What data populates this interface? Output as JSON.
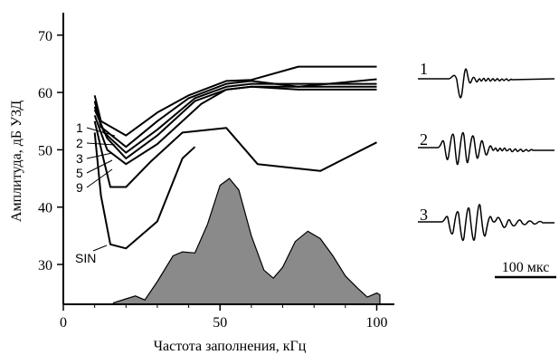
{
  "chart_data": {
    "type": "line",
    "title": "",
    "xlabel": "Частота заполнения, кГц",
    "ylabel": "Амплитуда, дБ УЗД",
    "xlim": [
      0,
      105
    ],
    "ylim": [
      23,
      74
    ],
    "xticks": [
      0,
      50,
      100
    ],
    "yticks": [
      30,
      40,
      50,
      60,
      70
    ],
    "grid": false,
    "series": [
      {
        "name": "1",
        "points": [
          [
            10,
            59.5
          ],
          [
            12,
            55
          ],
          [
            20,
            52.5
          ],
          [
            30,
            56.5
          ],
          [
            40,
            59.5
          ],
          [
            52,
            62
          ],
          [
            60,
            62.2
          ],
          [
            75,
            64.5
          ],
          [
            100,
            64.5
          ]
        ]
      },
      {
        "name": "2",
        "points": [
          [
            10,
            58.5
          ],
          [
            12,
            54
          ],
          [
            20,
            50.5
          ],
          [
            30,
            55
          ],
          [
            40,
            59
          ],
          [
            52,
            61.5
          ],
          [
            60,
            62
          ],
          [
            75,
            61
          ],
          [
            100,
            62.3
          ]
        ]
      },
      {
        "name": "3",
        "points": [
          [
            10,
            57.5
          ],
          [
            13,
            53
          ],
          [
            20,
            49.5
          ],
          [
            30,
            53.5
          ],
          [
            42,
            59
          ],
          [
            52,
            61
          ],
          [
            60,
            61.5
          ],
          [
            75,
            61.5
          ],
          [
            100,
            61.5
          ]
        ]
      },
      {
        "name": "5",
        "points": [
          [
            10,
            57
          ],
          [
            14,
            52
          ],
          [
            20,
            48.5
          ],
          [
            30,
            52.5
          ],
          [
            42,
            58.5
          ],
          [
            52,
            60.5
          ],
          [
            60,
            61
          ],
          [
            75,
            60.5
          ],
          [
            100,
            60.5
          ]
        ]
      },
      {
        "name": "9",
        "points": [
          [
            10,
            56
          ],
          [
            14,
            50
          ],
          [
            20,
            47.5
          ],
          [
            30,
            51
          ],
          [
            44,
            58
          ],
          [
            52,
            60.5
          ],
          [
            60,
            61
          ],
          [
            75,
            61
          ],
          [
            100,
            61
          ]
        ]
      },
      {
        "name": "",
        "points": [
          [
            10,
            55
          ],
          [
            13,
            48
          ],
          [
            15,
            43.5
          ],
          [
            20,
            43.5
          ],
          [
            28,
            48
          ],
          [
            38,
            53
          ],
          [
            52,
            53.8
          ],
          [
            62,
            47.5
          ],
          [
            82,
            46.3
          ],
          [
            100,
            51.3
          ]
        ]
      },
      {
        "name": "SIN",
        "points": [
          [
            10,
            53
          ],
          [
            12,
            42
          ],
          [
            15,
            33.5
          ],
          [
            20,
            32.8
          ],
          [
            30,
            37.5
          ],
          [
            38,
            48.5
          ],
          [
            42,
            50.5
          ]
        ]
      }
    ],
    "spectrum": {
      "type": "area",
      "points": [
        [
          16,
          23.3
        ],
        [
          20,
          24
        ],
        [
          23,
          24.5
        ],
        [
          26,
          23.8
        ],
        [
          30,
          27
        ],
        [
          35,
          31.5
        ],
        [
          38,
          32.2
        ],
        [
          42,
          32
        ],
        [
          46,
          37
        ],
        [
          50,
          43.8
        ],
        [
          53,
          45
        ],
        [
          56,
          43
        ],
        [
          60,
          35
        ],
        [
          64,
          29
        ],
        [
          67,
          27.6
        ],
        [
          70,
          29.5
        ],
        [
          74,
          34
        ],
        [
          78,
          35.8
        ],
        [
          82,
          34.5
        ],
        [
          86,
          31.5
        ],
        [
          90,
          28
        ],
        [
          94,
          25.8
        ],
        [
          97,
          24.3
        ],
        [
          100,
          25
        ],
        [
          101,
          24.7
        ]
      ]
    },
    "waveforms": {
      "labels": [
        "1",
        "2",
        "3"
      ],
      "scale_label": "100 мкс"
    }
  }
}
